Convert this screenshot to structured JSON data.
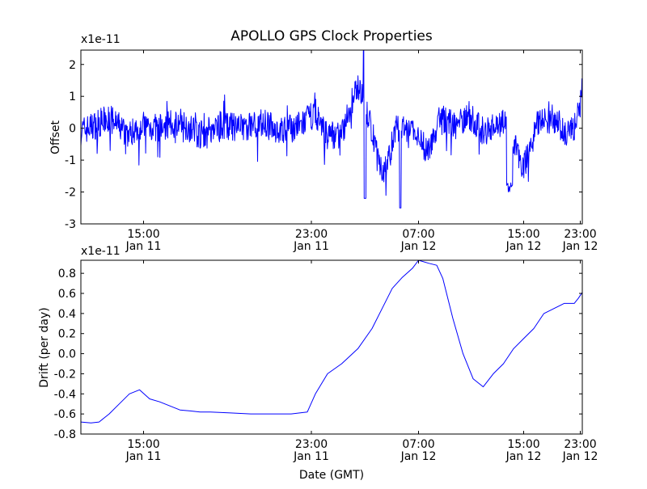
{
  "title": "APOLLO GPS Clock Properties",
  "xlabel": "Date (GMT)",
  "colors": {
    "series": "#0000ff",
    "axes": "#000000",
    "background": "#ffffff"
  },
  "chart_data": [
    {
      "type": "line",
      "ylabel": "Offset",
      "multiplier": "x1e-11",
      "ylim": [
        -3,
        2.45
      ],
      "yticks": [
        "2",
        "1",
        "0",
        "-1",
        "-2",
        "-3"
      ],
      "ytick_values": [
        2,
        1,
        0,
        -1,
        -2,
        -3
      ],
      "xlim_hours": [
        11.6,
        36.4
      ],
      "xticks": [
        {
          "time": "15:00",
          "date": "Jan 11"
        },
        {
          "time": "23:00",
          "date": "Jan 11"
        },
        {
          "time": "07:00",
          "date": "Jan 12"
        },
        {
          "time": "15:00",
          "date": "Jan 12"
        },
        {
          "time": "23:00",
          "date": "Jan 12"
        }
      ],
      "series": [
        {
          "x_hours": [
            11.6,
            12.3,
            13.0,
            14.0,
            14.5,
            15.5,
            16.5,
            17.5,
            18.5,
            19.5,
            20.5,
            21.5,
            22.5,
            23.2,
            23.7,
            24.5,
            25.3,
            26.0,
            26.6,
            27.2,
            28.0,
            28.7,
            29.5,
            30.0,
            30.8,
            31.5,
            32.5,
            33.5,
            34.2,
            35.0,
            35.7,
            36.0,
            36.4
          ],
          "values": [
            -0.1,
            0.1,
            0.3,
            -0.2,
            0.1,
            0.0,
            0.2,
            -0.2,
            0.1,
            0.0,
            0.2,
            -0.1,
            0.1,
            0.5,
            -0.2,
            -0.2,
            1.4,
            -0.1,
            -1.5,
            0.0,
            -0.1,
            -0.7,
            0.3,
            0.1,
            0.4,
            -0.1,
            0.2,
            -1.2,
            0.2,
            0.3,
            -0.2,
            0.0,
            1.0
          ]
        }
      ]
    },
    {
      "type": "line",
      "ylabel": "Drift (per day)",
      "multiplier": "x1e-11",
      "ylim": [
        -0.8,
        0.93
      ],
      "yticks": [
        "0.8",
        "0.6",
        "0.4",
        "0.2",
        "0.0",
        "-0.2",
        "-0.4",
        "-0.6",
        "-0.8"
      ],
      "ytick_values": [
        0.8,
        0.6,
        0.4,
        0.2,
        0.0,
        -0.2,
        -0.4,
        -0.6,
        -0.8
      ],
      "xlim_hours": [
        11.6,
        36.4
      ],
      "xticks": [
        {
          "time": "15:00",
          "date": "Jan 11"
        },
        {
          "time": "23:00",
          "date": "Jan 11"
        },
        {
          "time": "07:00",
          "date": "Jan 12"
        },
        {
          "time": "15:00",
          "date": "Jan 12"
        },
        {
          "time": "23:00",
          "date": "Jan 12"
        }
      ],
      "series": [
        {
          "x_hours": [
            11.6,
            12.1,
            12.5,
            13.0,
            13.5,
            14.0,
            14.5,
            15.0,
            15.5,
            16.0,
            16.5,
            17.0,
            17.5,
            18.0,
            19.0,
            20.0,
            21.0,
            22.0,
            22.8,
            23.2,
            23.8,
            24.5,
            25.3,
            26.0,
            26.5,
            27.0,
            27.5,
            28.0,
            28.3,
            28.8,
            29.2,
            29.5,
            30.0,
            30.5,
            31.0,
            31.5,
            32.0,
            32.5,
            33.0,
            33.5,
            34.0,
            34.5,
            35.0,
            35.5,
            36.0,
            36.2,
            36.4
          ],
          "values": [
            -0.68,
            -0.69,
            -0.68,
            -0.6,
            -0.5,
            -0.4,
            -0.36,
            -0.45,
            -0.48,
            -0.52,
            -0.56,
            -0.57,
            -0.58,
            -0.58,
            -0.59,
            -0.6,
            -0.6,
            -0.6,
            -0.58,
            -0.4,
            -0.2,
            -0.1,
            0.05,
            0.25,
            0.45,
            0.65,
            0.76,
            0.85,
            0.93,
            0.9,
            0.88,
            0.75,
            0.35,
            0.0,
            -0.25,
            -0.33,
            -0.2,
            -0.1,
            0.05,
            0.15,
            0.25,
            0.4,
            0.45,
            0.5,
            0.5,
            0.55,
            0.61
          ]
        }
      ]
    }
  ]
}
